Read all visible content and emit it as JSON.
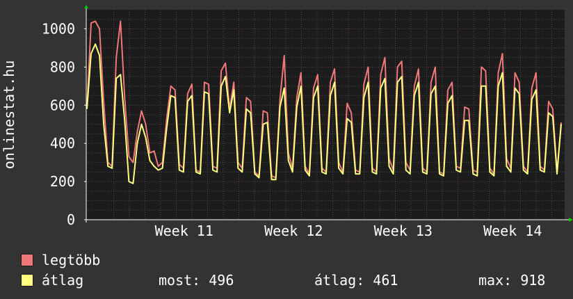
{
  "chart_data": {
    "type": "line",
    "ylabel": "onlinestat.hu",
    "ylim": [
      0,
      1100
    ],
    "y_ticks": [
      "0",
      "200",
      "400",
      "600",
      "800",
      "1000"
    ],
    "x_tick_labels": [
      "Week 11",
      "Week 12",
      "Week 13",
      "Week 14"
    ],
    "grid": true,
    "series": [
      {
        "name": "legtöbb",
        "color": "#f07878",
        "values": [
          590,
          1030,
          1040,
          1000,
          620,
          300,
          280,
          850,
          1040,
          640,
          330,
          300,
          460,
          570,
          500,
          350,
          360,
          280,
          300,
          530,
          700,
          680,
          290,
          270,
          660,
          710,
          260,
          250,
          720,
          710,
          280,
          270,
          780,
          820,
          580,
          720,
          300,
          270,
          640,
          620,
          250,
          230,
          570,
          560,
          230,
          220,
          630,
          860,
          350,
          270,
          640,
          770,
          280,
          240,
          690,
          760,
          270,
          250,
          720,
          790,
          300,
          250,
          610,
          560,
          260,
          250,
          710,
          800,
          270,
          250,
          760,
          850,
          320,
          260,
          800,
          830,
          300,
          260,
          700,
          790,
          270,
          250,
          720,
          800,
          250,
          240,
          680,
          720,
          280,
          270,
          590,
          580,
          260,
          250,
          800,
          780,
          270,
          240,
          770,
          870,
          320,
          270,
          770,
          720,
          280,
          250,
          690,
          770,
          280,
          260,
          620,
          580,
          250,
          510
        ]
      },
      {
        "name": "átlag",
        "color": "#ffff80",
        "values": [
          580,
          870,
          920,
          860,
          500,
          280,
          270,
          740,
          760,
          520,
          200,
          190,
          400,
          500,
          430,
          310,
          280,
          260,
          270,
          480,
          650,
          640,
          260,
          250,
          620,
          650,
          250,
          240,
          670,
          660,
          260,
          250,
          700,
          750,
          560,
          680,
          270,
          250,
          580,
          560,
          240,
          220,
          500,
          510,
          210,
          210,
          590,
          690,
          310,
          250,
          590,
          700,
          260,
          230,
          640,
          700,
          250,
          240,
          650,
          720,
          270,
          240,
          530,
          510,
          240,
          240,
          640,
          720,
          250,
          240,
          690,
          740,
          280,
          240,
          720,
          750,
          260,
          240,
          650,
          720,
          250,
          240,
          660,
          700,
          240,
          230,
          610,
          650,
          260,
          250,
          520,
          520,
          240,
          230,
          700,
          700,
          250,
          230,
          700,
          770,
          280,
          250,
          690,
          660,
          260,
          240,
          630,
          680,
          260,
          250,
          560,
          540,
          240,
          500
        ]
      }
    ]
  },
  "legend": [
    {
      "label": "legtöbb",
      "color": "#f07878"
    },
    {
      "label": "átlag",
      "color": "#ffff80"
    }
  ],
  "stats": {
    "most": "most: 496",
    "atlag": "átlag: 461",
    "max": "max: 918"
  }
}
